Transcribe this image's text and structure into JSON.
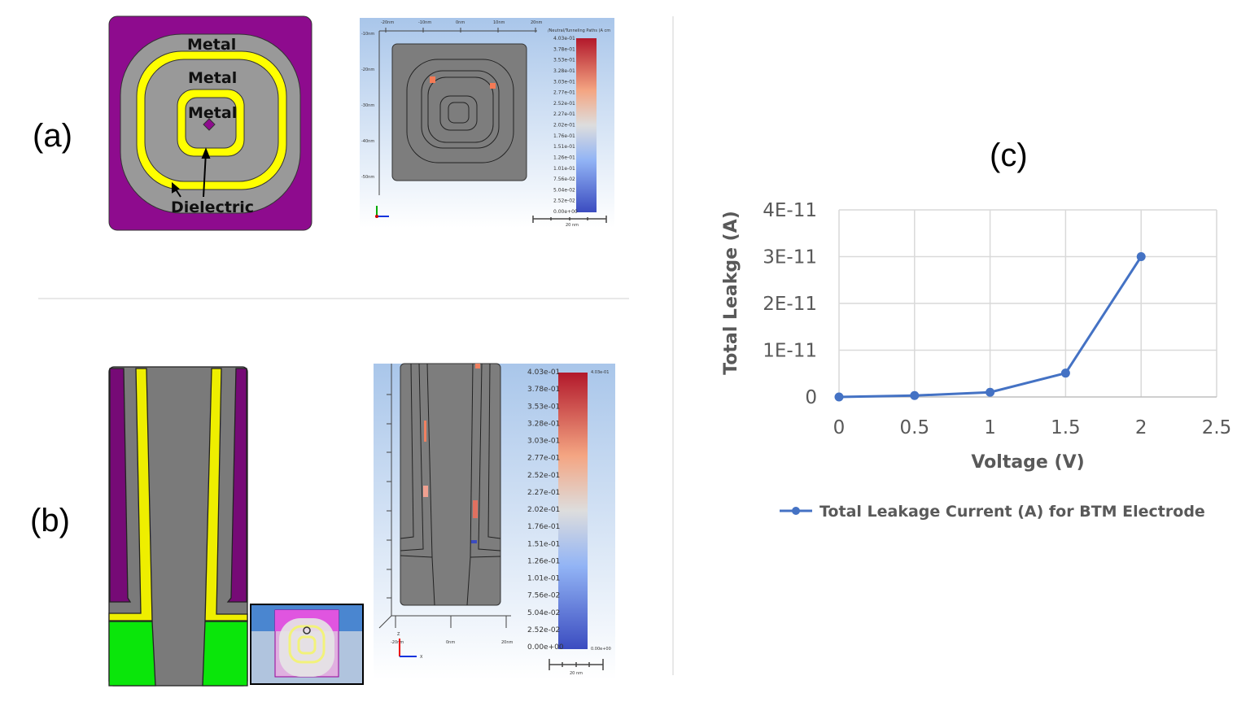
{
  "panel_labels": {
    "a": "(a)",
    "b": "(b)",
    "c": "(c)"
  },
  "panel_a": {
    "labels": {
      "metal_outer": "Metal",
      "metal_middle": "Metal",
      "metal_inner": "Metal",
      "dielectric": "Dielectric"
    },
    "colors": {
      "outer": "#8e0b8e",
      "dielectric": "#ffff00",
      "metal": "#999999"
    },
    "sim": {
      "colorbar_title": "/Neutral/Tunneling Paths (A cm",
      "x_ticks": [
        "-20nm",
        "-10nm",
        "0nm",
        "10nm",
        "20nm"
      ],
      "y_ticks": [
        "-10nm",
        "-20nm",
        "-30nm",
        "-40nm",
        "-50nm"
      ],
      "scale_bar": "20 nm"
    }
  },
  "panel_b": {
    "colors": {
      "outer": "#760a76",
      "dielectric": "#eeee00",
      "metal": "#7a7a7a",
      "substrate": "#0ae60a"
    },
    "sim": {
      "x_ticks": [
        "-20nm",
        "0nm",
        "20nm"
      ],
      "scale_bar": "20 nm",
      "axis_labels": {
        "z": "Z",
        "x": "X"
      }
    }
  },
  "colorbar": {
    "labels": [
      "4.03e-01",
      "3.78e-01",
      "3.53e-01",
      "3.28e-01",
      "3.03e-01",
      "2.77e-01",
      "2.52e-01",
      "2.27e-01",
      "2.02e-01",
      "1.76e-01",
      "1.51e-01",
      "1.26e-01",
      "1.01e-01",
      "7.56e-02",
      "5.04e-02",
      "2.52e-02",
      "0.00e+00"
    ],
    "max_label": "4.03e-01",
    "min_label": "0.00e+00",
    "colors": [
      "#b2182b",
      "#f4a582",
      "#dddddd",
      "#92b4f5",
      "#3b4cc0"
    ]
  },
  "chart_data": {
    "type": "line",
    "title": "",
    "xlabel": "Voltage (V)",
    "ylabel": "Total Leakge (A)",
    "xlim": [
      0,
      2.5
    ],
    "ylim": [
      0,
      4e-11
    ],
    "x_ticks": [
      "0",
      "0.5",
      "1",
      "1.5",
      "2",
      "2.5"
    ],
    "y_ticks": [
      "0",
      "1E-11",
      "2E-11",
      "3E-11",
      "4E-11"
    ],
    "grid": true,
    "legend_position": "bottom",
    "series": [
      {
        "name": "Total Leakage Current (A) for BTM Electrode",
        "color": "#4472c4",
        "x": [
          0,
          0.5,
          1,
          1.5,
          2
        ],
        "y": [
          0,
          3e-13,
          1e-12,
          5.1e-12,
          3e-11
        ]
      }
    ]
  }
}
